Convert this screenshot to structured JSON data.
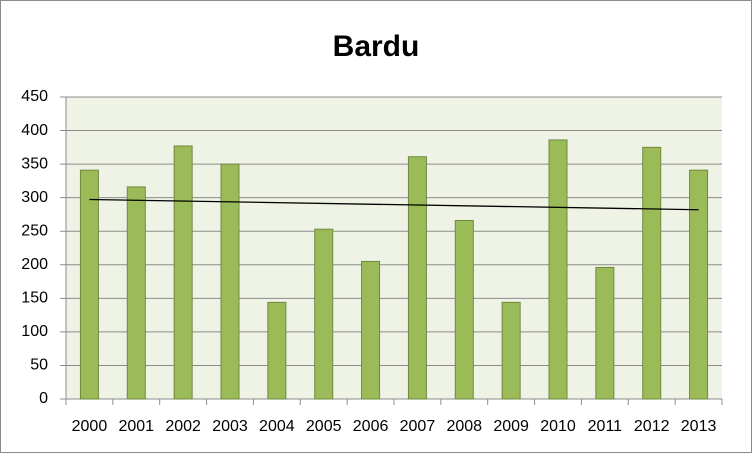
{
  "chart_data": {
    "type": "bar",
    "title": "Bardu",
    "categories": [
      "2000",
      "2001",
      "2002",
      "2003",
      "2004",
      "2005",
      "2006",
      "2007",
      "2008",
      "2009",
      "2010",
      "2011",
      "2012",
      "2013"
    ],
    "values": [
      341,
      316,
      377,
      350,
      144,
      253,
      205,
      361,
      266,
      144,
      386,
      196,
      375,
      341
    ],
    "color": "#9bbb59",
    "ylim": [
      0,
      450
    ],
    "yticks": [
      0,
      50,
      100,
      150,
      200,
      250,
      300,
      350,
      400,
      450
    ],
    "grid": true,
    "trendline": true
  }
}
